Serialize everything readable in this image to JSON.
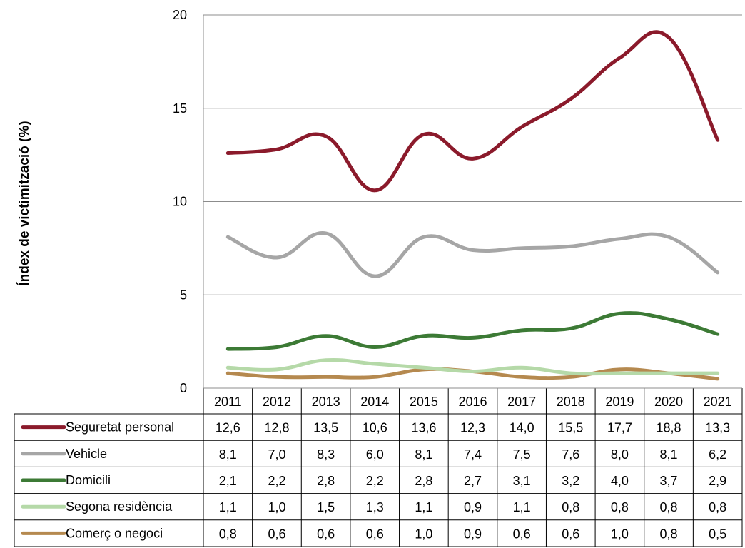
{
  "chart_data": {
    "type": "line",
    "ylabel": "Índex de victimització (%)",
    "ylim": [
      0,
      20
    ],
    "yticks": [
      0,
      5,
      10,
      15,
      20
    ],
    "grid": "horizontal",
    "legend": "data-table",
    "categories": [
      "2011",
      "2012",
      "2013",
      "2014",
      "2015",
      "2016",
      "2017",
      "2018",
      "2019",
      "2020",
      "2021"
    ],
    "series": [
      {
        "name": "Seguretat personal",
        "color": "#8b1a2b",
        "values": [
          12.6,
          12.8,
          13.5,
          10.6,
          13.6,
          12.3,
          14.0,
          15.5,
          17.7,
          18.8,
          13.3
        ],
        "labels": [
          "12,6",
          "12,8",
          "13,5",
          "10,6",
          "13,6",
          "12,3",
          "14,0",
          "15,5",
          "17,7",
          "18,8",
          "13,3"
        ]
      },
      {
        "name": "Vehicle",
        "color": "#a6a6a6",
        "values": [
          8.1,
          7.0,
          8.3,
          6.0,
          8.1,
          7.4,
          7.5,
          7.6,
          8.0,
          8.1,
          6.2
        ],
        "labels": [
          "8,1",
          "7,0",
          "8,3",
          "6,0",
          "8,1",
          "7,4",
          "7,5",
          "7,6",
          "8,0",
          "8,1",
          "6,2"
        ]
      },
      {
        "name": "Domicili",
        "color": "#3c7a35",
        "values": [
          2.1,
          2.2,
          2.8,
          2.2,
          2.8,
          2.7,
          3.1,
          3.2,
          4.0,
          3.7,
          2.9
        ],
        "labels": [
          "2,1",
          "2,2",
          "2,8",
          "2,2",
          "2,8",
          "2,7",
          "3,1",
          "3,2",
          "4,0",
          "3,7",
          "2,9"
        ]
      },
      {
        "name": "Segona residència",
        "color": "#b5d9a8",
        "values": [
          1.1,
          1.0,
          1.5,
          1.3,
          1.1,
          0.9,
          1.1,
          0.8,
          0.8,
          0.8,
          0.8
        ],
        "labels": [
          "1,1",
          "1,0",
          "1,5",
          "1,3",
          "1,1",
          "0,9",
          "1,1",
          "0,8",
          "0,8",
          "0,8",
          "0,8"
        ]
      },
      {
        "name": "Comerç o negoci",
        "color": "#b5894f",
        "values": [
          0.8,
          0.6,
          0.6,
          0.6,
          1.0,
          0.9,
          0.6,
          0.6,
          1.0,
          0.8,
          0.5
        ],
        "labels": [
          "0,8",
          "0,6",
          "0,6",
          "0,6",
          "1,0",
          "0,9",
          "0,6",
          "0,6",
          "1,0",
          "0,8",
          "0,5"
        ]
      }
    ]
  }
}
